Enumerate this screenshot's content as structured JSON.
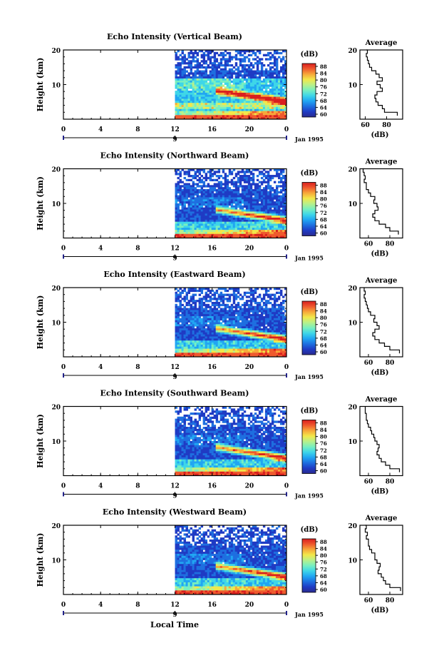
{
  "figure": {
    "x_axis_label": "Local Time",
    "date_label": "Jan 1995",
    "colorbar_unit": "(dB)",
    "colorbar_ticks": [
      "88",
      "84",
      "80",
      "76",
      "72",
      "68",
      "64",
      "60"
    ],
    "colormap": [
      "#2a2a8f",
      "#1f3bc4",
      "#1e6fe0",
      "#21a6f2",
      "#3ed6e8",
      "#78efc0",
      "#b8f08a",
      "#f2e84a",
      "#f7a83a",
      "#ef5a2e",
      "#d91f1f"
    ],
    "main_x_ticks": [
      "0",
      "4",
      "8",
      "12",
      "16",
      "20",
      "0"
    ],
    "main_y_ticks": [
      "20",
      "10"
    ],
    "day_marker_label": "9",
    "avg_title": "Average",
    "avg_xlabel": "(dB)",
    "avg_y_ticks": [
      "20",
      "10"
    ]
  },
  "chart_data": [
    {
      "type": "heatmap",
      "title": "Echo Intensity (Vertical Beam)",
      "ylabel": "Height (km)",
      "xlabel": "Local Time",
      "x_range_hours": [
        0,
        24
      ],
      "data_start_hour": 12,
      "ylim_km": [
        0,
        20
      ],
      "color_range_db": [
        60,
        88
      ],
      "average_profile": {
        "title": "Average",
        "xlabel": "(dB)",
        "x_tick_labels": [
          "60",
          "80"
        ],
        "x_tick_values": [
          60,
          80
        ],
        "xlim": [
          55,
          95
        ],
        "height_km": [
          1,
          2,
          3,
          4,
          5,
          6,
          7,
          8,
          9,
          10,
          11,
          12,
          13,
          14,
          15,
          16,
          17,
          18,
          19,
          20
        ],
        "db": [
          90,
          78,
          76,
          72,
          70,
          69,
          71,
          76,
          74,
          71,
          76,
          73,
          70,
          66,
          64,
          63,
          62,
          61,
          62,
          61
        ]
      }
    },
    {
      "type": "heatmap",
      "title": "Echo Intensity (Northward Beam)",
      "ylabel": "Height (km)",
      "xlabel": "Local Time",
      "x_range_hours": [
        0,
        24
      ],
      "data_start_hour": 12,
      "ylim_km": [
        0,
        20
      ],
      "color_range_db": [
        60,
        88
      ],
      "average_profile": {
        "title": "Average",
        "xlabel": "(dB)",
        "x_tick_labels": [
          "60",
          "80"
        ],
        "x_tick_values": [
          60,
          80
        ],
        "xlim": [
          52,
          92
        ],
        "height_km": [
          1,
          2,
          3,
          4,
          5,
          6,
          7,
          8,
          9,
          10,
          11,
          12,
          13,
          14,
          15,
          16,
          17,
          18,
          19,
          20
        ],
        "db": [
          88,
          80,
          76,
          70,
          66,
          64,
          66,
          69,
          68,
          65,
          66,
          62,
          60,
          58,
          58,
          56,
          57,
          56,
          55,
          56
        ]
      }
    },
    {
      "type": "heatmap",
      "title": "Echo Intensity (Eastward Beam)",
      "ylabel": "Height (km)",
      "xlabel": "Local Time",
      "x_range_hours": [
        0,
        24
      ],
      "data_start_hour": 12,
      "ylim_km": [
        0,
        20
      ],
      "color_range_db": [
        60,
        88
      ],
      "average_profile": {
        "title": "Average",
        "xlabel": "(dB)",
        "x_tick_labels": [
          "60",
          "80"
        ],
        "x_tick_values": [
          60,
          80
        ],
        "xlim": [
          52,
          92
        ],
        "height_km": [
          1,
          2,
          3,
          4,
          5,
          6,
          7,
          8,
          9,
          10,
          11,
          12,
          13,
          14,
          15,
          16,
          17,
          18,
          19,
          20
        ],
        "db": [
          89,
          80,
          75,
          70,
          66,
          64,
          66,
          70,
          68,
          65,
          66,
          62,
          60,
          59,
          58,
          57,
          56,
          57,
          56,
          56
        ]
      }
    },
    {
      "type": "heatmap",
      "title": "Echo Intensity (Southward Beam)",
      "ylabel": "Height (km)",
      "xlabel": "Local Time",
      "x_range_hours": [
        0,
        24
      ],
      "data_start_hour": 12,
      "ylim_km": [
        0,
        20
      ],
      "color_range_db": [
        60,
        88
      ],
      "average_profile": {
        "title": "Average",
        "xlabel": "(dB)",
        "x_tick_labels": [
          "60",
          "80"
        ],
        "x_tick_values": [
          60,
          80
        ],
        "xlim": [
          52,
          92
        ],
        "height_km": [
          1,
          2,
          3,
          4,
          5,
          6,
          7,
          8,
          9,
          10,
          11,
          12,
          13,
          14,
          15,
          16,
          17,
          18,
          19,
          20
        ],
        "db": [
          89,
          80,
          76,
          72,
          70,
          68,
          69,
          70,
          68,
          66,
          65,
          63,
          62,
          60,
          59,
          58,
          58,
          57,
          57,
          57
        ]
      }
    },
    {
      "type": "heatmap",
      "title": "Echo Intensity (Westward Beam)",
      "ylabel": "Height (km)",
      "xlabel": "Local Time",
      "x_range_hours": [
        0,
        24
      ],
      "data_start_hour": 12,
      "ylim_km": [
        0,
        20
      ],
      "color_range_db": [
        60,
        88
      ],
      "average_profile": {
        "title": "Average",
        "xlabel": "(dB)",
        "x_tick_labels": [
          "60",
          "80"
        ],
        "x_tick_values": [
          60,
          80
        ],
        "xlim": [
          52,
          92
        ],
        "height_km": [
          1,
          2,
          3,
          4,
          5,
          6,
          7,
          8,
          9,
          10,
          11,
          12,
          13,
          14,
          15,
          16,
          17,
          18,
          19,
          20
        ],
        "db": [
          90,
          80,
          76,
          74,
          72,
          69,
          70,
          71,
          68,
          66,
          66,
          63,
          61,
          60,
          60,
          58,
          59,
          57,
          58,
          57
        ]
      }
    }
  ]
}
